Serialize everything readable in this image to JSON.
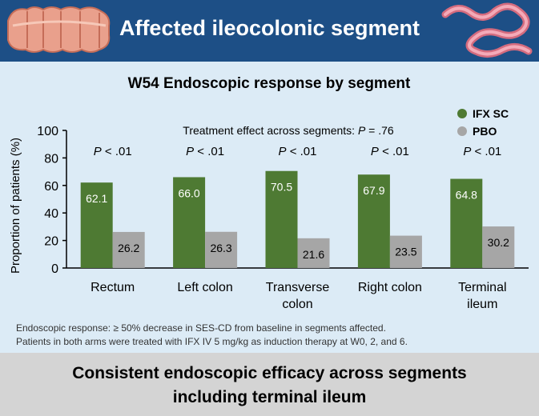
{
  "header": {
    "title": "Affected ileocolonic segment"
  },
  "chart_data": {
    "type": "bar",
    "title": "W54 Endoscopic response by segment",
    "ylabel": "Proportion of patients (%)",
    "xlabel": "",
    "ylim": [
      0,
      100
    ],
    "yticks": [
      0,
      20,
      40,
      60,
      80,
      100
    ],
    "categories": [
      [
        "Rectum"
      ],
      [
        "Left colon"
      ],
      [
        "Transverse",
        "colon"
      ],
      [
        "Right colon"
      ],
      [
        "Terminal",
        "ileum"
      ]
    ],
    "series": [
      {
        "name": "IFX SC",
        "color": "#4e7a33",
        "values": [
          62.1,
          66.0,
          70.5,
          67.9,
          64.8
        ],
        "labels": [
          "62.1",
          "66.0",
          "70.5",
          "67.9",
          "64.8"
        ]
      },
      {
        "name": "PBO",
        "color": "#a6a6a6",
        "values": [
          26.2,
          26.3,
          21.6,
          23.5,
          30.2
        ],
        "labels": [
          "26.2",
          "26.3",
          "21.6",
          "23.5",
          "30.2"
        ]
      }
    ],
    "pvalues": [
      "< .01",
      "< .01",
      "< .01",
      "< .01",
      "< .01"
    ],
    "pvalue_symbol": "P",
    "annotation": {
      "prefix": "Treatment effect across segments: ",
      "symbol": "P",
      "value": " = .76"
    },
    "legend_position": "top-right",
    "grid": false
  },
  "notes": [
    "Endoscopic response: ≥ 50% decrease in SES-CD from baseline in segments affected.",
    "Patients in both arms were treated with IFX IV 5 mg/kg as induction therapy at W0, 2, and 6."
  ],
  "footer": {
    "line1": "Consistent endoscopic efficacy across segments",
    "line2": "including terminal ileum"
  },
  "icons": [
    "colon-icon",
    "intestine-icon"
  ]
}
